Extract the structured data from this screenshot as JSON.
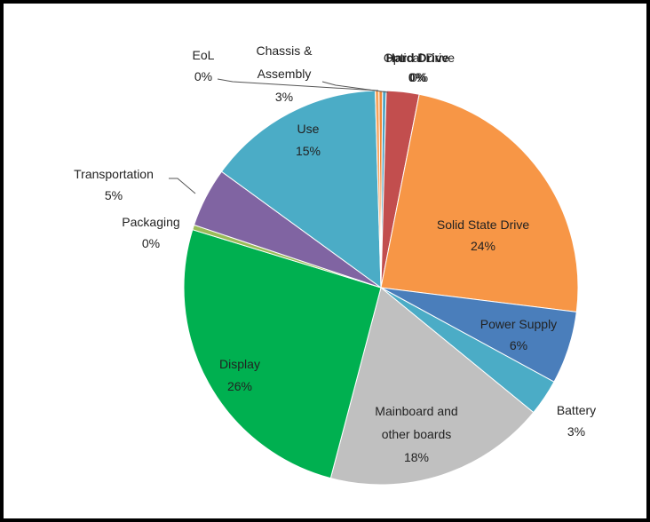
{
  "chart_data": {
    "type": "pie",
    "title": "",
    "slices": [
      {
        "label": "Optical Drive",
        "value_label": "0%",
        "value": 0.3,
        "color": "#ef8a39"
      },
      {
        "label": "Hard Drive",
        "value_label": "0%",
        "value": 0.3,
        "color": "#4ea3c3"
      },
      {
        "label": "Chassis & Assembly",
        "value_label": "3%",
        "value": 2.7,
        "color": "#c24e4e"
      },
      {
        "label": "Solid State Drive",
        "value_label": "24%",
        "value": 24,
        "color": "#f79646"
      },
      {
        "label": "Power Supply",
        "value_label": "6%",
        "value": 6,
        "color": "#4a7ebb"
      },
      {
        "label": "Battery",
        "value_label": "3%",
        "value": 3,
        "color": "#4bacc6"
      },
      {
        "label": "Mainboard and other boards",
        "value_label": "18%",
        "value": 18.3,
        "color": "#c0c0c0"
      },
      {
        "label": "Display",
        "value_label": "26%",
        "value": 25.8,
        "color": "#00b050"
      },
      {
        "label": "Packaging",
        "value_label": "0%",
        "value": 0.4,
        "color": "#9bbb59"
      },
      {
        "label": "Transportation",
        "value_label": "5%",
        "value": 4.9,
        "color": "#8064a2"
      },
      {
        "label": "Use",
        "value_label": "15%",
        "value": 14.6,
        "color": "#4bacc6"
      },
      {
        "label": "EoL",
        "value_label": "0%",
        "value": 0.3,
        "color": "#f7a35c"
      }
    ]
  }
}
